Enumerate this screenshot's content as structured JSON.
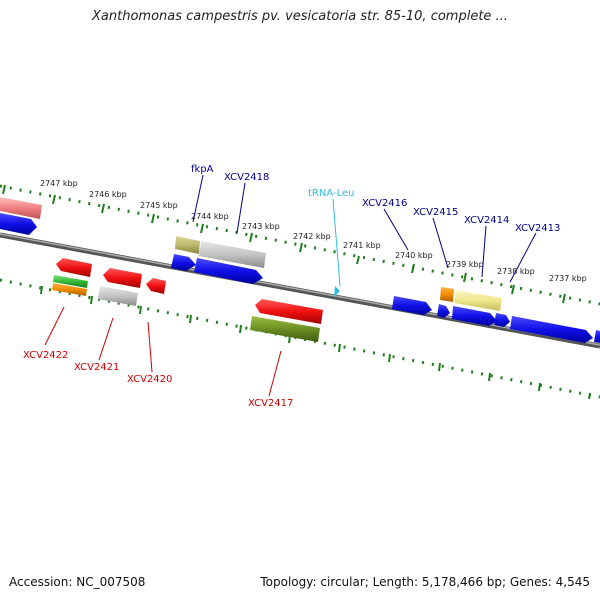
{
  "title": "Xanthomonas campestris pv. vesicatoria str. 85-10, complete ...",
  "footer": {
    "accession": "Accession: NC_007508",
    "summary": "Topology: circular; Length: 5,178,466 bp; Genes: 4,545"
  },
  "colors": {
    "forward_gene": "#1515e0",
    "reverse_gene": "#e01010",
    "forward_label": "#00008b",
    "reverse_label": "#cc0000",
    "trna_label": "#33bbdd",
    "tick": "#1e7d1e",
    "backbone": "#777777",
    "pseudogene": "#c0c0c0",
    "olive": "#6b8e23",
    "khaki": "#bdb76b",
    "orange": "#f08c00",
    "green": "#33bb33",
    "pale_yellow": "#f0e68c",
    "pink": "#f08080"
  },
  "kbp_labels": [
    "2747 kbp",
    "2746 kbp",
    "2745 kbp",
    "2744 kbp",
    "2743 kbp",
    "2742 kbp",
    "2741 kbp",
    "2740 kbp",
    "2739 kbp",
    "2738 kbp",
    "2737 kbp"
  ],
  "gene_labels_top": [
    "fkpA",
    "XCV2418",
    "tRNA-Leu",
    "XCV2416",
    "XCV2415",
    "XCV2414",
    "XCV2413"
  ],
  "gene_labels_bottom": [
    "XCV2422",
    "XCV2421",
    "XCV2420",
    "XCV2417"
  ]
}
